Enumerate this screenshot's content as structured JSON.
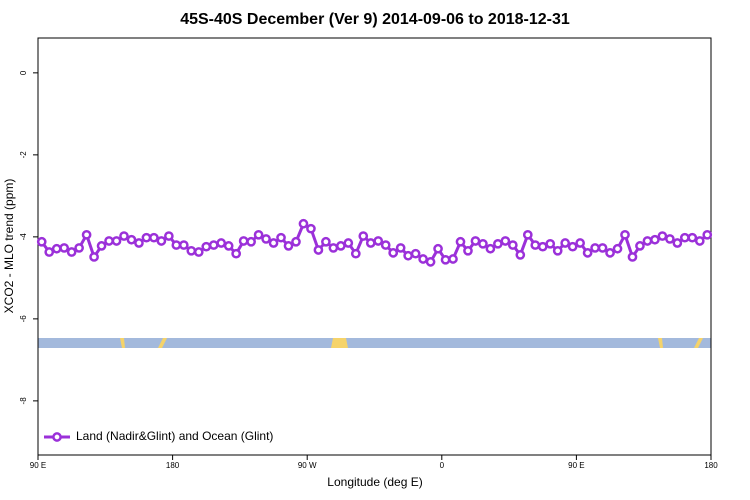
{
  "chart_data": {
    "type": "line",
    "title": "45S-40S December (Ver 9)   2014-09-06 to 2018-12-31",
    "x_label": "Longitude (deg E)",
    "y_label": "XCO2 - MLO trend (ppm)",
    "xlim": [
      90,
      540
    ],
    "ylim": [
      -9.32,
      0.85
    ],
    "xticks": [
      {
        "value": 90,
        "label": "90 E"
      },
      180,
      {
        "value": 270,
        "label": "90 W"
      },
      {
        "value": 360,
        "label": "0"
      },
      {
        "value": 450,
        "label": "90 E"
      },
      {
        "value": 540,
        "label": "180"
      }
    ],
    "yticks": [
      0,
      -2,
      -4,
      -6,
      -8
    ],
    "legend": "bottom left",
    "grid": false,
    "x": [
      92.5,
      97.5,
      102.5,
      107.5,
      112.5,
      117.5,
      122.5,
      127.5,
      132.5,
      137.5,
      142.5,
      147.5,
      152.5,
      157.5,
      162.5,
      167.5,
      172.5,
      177.5,
      182.5,
      187.5,
      192.5,
      197.5,
      202.5,
      207.5,
      212.5,
      217.5,
      222.5,
      227.5,
      232.5,
      237.5,
      242.5,
      247.5,
      252.5,
      257.5,
      262.5,
      267.5,
      272.5,
      277.5,
      282.5,
      287.5,
      292.5,
      297.5,
      302.5,
      307.5,
      312.5,
      317.5,
      322.5,
      327.5,
      332.5,
      337.5,
      342.5,
      347.5,
      352.5,
      357.5,
      362.5,
      367.5,
      372.5,
      377.5,
      382.5,
      387.5,
      392.5,
      397.5,
      402.5,
      407.5,
      412.5,
      417.5,
      422.5,
      427.5,
      432.5,
      437.5,
      442.5,
      447.5,
      452.5,
      457.5,
      462.5,
      467.5,
      472.5,
      477.5,
      482.5,
      487.5,
      492.5,
      497.5,
      502.5,
      507.5,
      512.5,
      517.5,
      522.5,
      527.5,
      532.5,
      537.5
    ],
    "series": [
      {
        "name": "Land (Nadir&Glint) and Ocean (Glint)",
        "color": "#9b30d9",
        "values": [
          -4.12,
          -4.37,
          -4.29,
          -4.27,
          -4.37,
          -4.27,
          -3.95,
          -4.49,
          -4.22,
          -4.1,
          -4.1,
          -3.98,
          -4.07,
          -4.15,
          -4.02,
          -4.02,
          -4.1,
          -3.98,
          -4.2,
          -4.2,
          -4.34,
          -4.37,
          -4.24,
          -4.2,
          -4.15,
          -4.22,
          -4.41,
          -4.1,
          -4.12,
          -3.95,
          -4.05,
          -4.15,
          -4.02,
          -4.22,
          -4.12,
          -3.68,
          -3.8,
          -4.32,
          -4.12,
          -4.27,
          -4.22,
          -4.15,
          -4.41,
          -3.98,
          -4.15,
          -4.1,
          -4.2,
          -4.39,
          -4.27,
          -4.46,
          -4.41,
          -4.54,
          -4.61,
          -4.29,
          -4.56,
          -4.54,
          -4.12,
          -4.34,
          -4.1,
          -4.17,
          -4.29,
          -4.17,
          -4.1,
          -4.2,
          -4.44,
          -3.95,
          -4.2,
          -4.24,
          -4.17,
          -4.34,
          -4.15,
          -4.24,
          -4.15,
          -4.39,
          -4.27,
          -4.27,
          -4.39,
          -4.29,
          -3.95,
          -4.49,
          -4.22,
          -4.1,
          -4.07,
          -3.98,
          -4.05,
          -4.15,
          -4.02,
          -4.02,
          -4.1,
          -3.95
        ]
      }
    ]
  }
}
